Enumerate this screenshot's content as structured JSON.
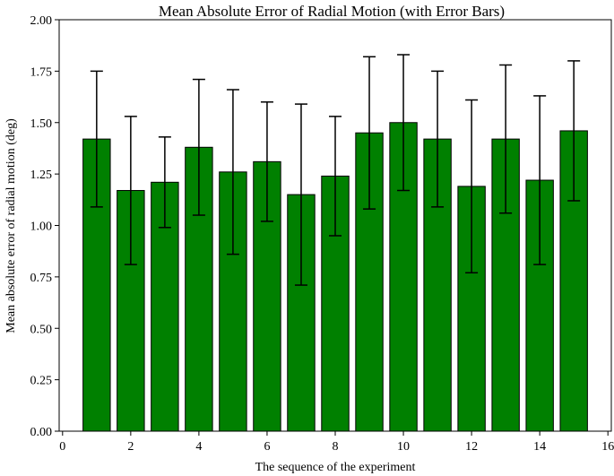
{
  "chart_data": {
    "type": "bar",
    "title": "Mean Absolute Error of Radial Motion (with Error Bars)",
    "xlabel": "The sequence of the experiment",
    "ylabel": "Mean absolute error of radial motion (deg)",
    "x": [
      1,
      2,
      3,
      4,
      5,
      6,
      7,
      8,
      9,
      10,
      11,
      12,
      13,
      14,
      15
    ],
    "values": [
      1.42,
      1.17,
      1.21,
      1.38,
      1.26,
      1.31,
      1.15,
      1.24,
      1.45,
      1.5,
      1.42,
      1.19,
      1.42,
      1.22,
      1.46
    ],
    "error_lower": [
      1.09,
      0.81,
      0.99,
      1.05,
      0.86,
      1.02,
      0.71,
      0.95,
      1.08,
      1.17,
      1.09,
      0.77,
      1.06,
      0.81,
      1.12
    ],
    "error_upper": [
      1.75,
      1.53,
      1.43,
      1.71,
      1.66,
      1.6,
      1.59,
      1.53,
      1.82,
      1.83,
      1.75,
      1.61,
      1.78,
      1.63,
      1.8
    ],
    "xlim": [
      -0.1,
      16.1
    ],
    "ylim": [
      0,
      2.0
    ],
    "xticks": [
      "0",
      "2",
      "4",
      "6",
      "8",
      "10",
      "12",
      "14",
      "16"
    ],
    "yticks": [
      "0.00",
      "0.25",
      "0.50",
      "0.75",
      "1.00",
      "1.25",
      "1.50",
      "1.75",
      "2.00"
    ],
    "bar_width": 0.8,
    "grid": false,
    "bar_color": "#008000",
    "bar_edge_color": "#000000",
    "errorbar_color": "#000000"
  }
}
